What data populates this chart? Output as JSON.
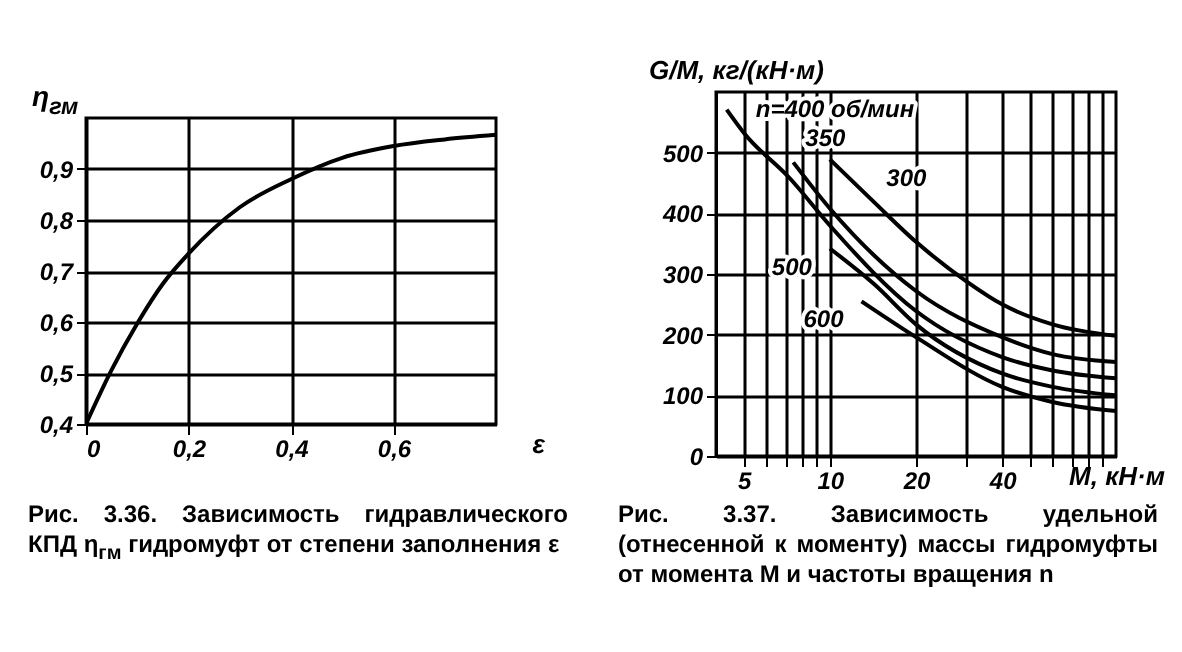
{
  "chart_data": [
    {
      "type": "line",
      "xlabel": "ε",
      "ylabel": "η$_{гм}$",
      "x": [
        0,
        0.05,
        0.1,
        0.15,
        0.2,
        0.3,
        0.4,
        0.5,
        0.6,
        0.7,
        0.8
      ],
      "values": [
        0.4,
        0.506,
        0.597,
        0.675,
        0.734,
        0.825,
        0.88,
        0.922,
        0.945,
        0.958,
        0.967
      ],
      "color": "#000000",
      "xlim": [
        0,
        0.8
      ],
      "ylim": [
        0.4,
        1.0
      ],
      "xticks": [
        0,
        {
          "value": 0.2,
          "label": "0,2"
        },
        {
          "value": 0.4,
          "label": "0,4"
        },
        {
          "value": 0.6,
          "label": "0,6"
        }
      ],
      "yticks": [
        {
          "value": 0.4,
          "label": "0,4"
        },
        {
          "value": 0.5,
          "label": "0,5"
        },
        {
          "value": 0.6,
          "label": "0,6"
        },
        {
          "value": 0.7,
          "label": "0,7"
        },
        {
          "value": 0.8,
          "label": "0,8"
        },
        {
          "value": 0.9,
          "label": "0,9"
        }
      ],
      "grid": true,
      "marker": "none",
      "line_style": "solid",
      "annotations": [
        "Рис. 3.36. Зависимость гидравлического КПД η$_{гм}$ гидромуфт от степени заполнения ε"
      ]
    },
    {
      "type": "line",
      "xlabel": "M, кН·м",
      "ylabel": "G/M, кг/(кН·м)",
      "log": "x",
      "series": [
        {
          "name": "n=400 об/мин",
          "color": "#000000",
          "x": [
            4.36,
            5,
            7.27,
            10,
            20,
            40,
            60,
            100
          ],
          "values": [
            571,
            533,
            457,
            380,
            239,
            163,
            141,
            128
          ]
        },
        {
          "name": "350",
          "color": "#000000",
          "x": [
            7.45,
            10,
            20,
            40,
            60,
            100
          ],
          "values": [
            484,
            408,
            272,
            196,
            168,
            155
          ]
        },
        {
          "name": "300",
          "color": "#000000",
          "x": [
            10,
            14.3,
            20,
            30,
            40,
            60,
            100
          ],
          "values": [
            489,
            418,
            353,
            288,
            250,
            217,
            198
          ]
        },
        {
          "name": "500",
          "color": "#000000",
          "x": [
            10,
            14.3,
            20,
            40,
            60,
            100
          ],
          "values": [
            342,
            283,
            217,
            136,
            114,
            100
          ]
        },
        {
          "name": "600",
          "color": "#000000",
          "x": [
            12.9,
            20,
            40,
            60,
            100
          ],
          "values": [
            255,
            196,
            114,
            89,
            74
          ]
        }
      ],
      "xlim": [
        4,
        100
      ],
      "ylim": [
        0,
        600
      ],
      "xticks": [
        5,
        {
          "value": 6,
          "label": null
        },
        {
          "value": 7,
          "label": null
        },
        {
          "value": 8,
          "label": null
        },
        {
          "value": 9,
          "label": null
        },
        10,
        20,
        {
          "value": 30,
          "label": null
        },
        40,
        {
          "value": 50,
          "label": null
        },
        {
          "value": 60,
          "label": null
        },
        {
          "value": 70,
          "label": null
        },
        {
          "value": 80,
          "label": null
        },
        {
          "value": 90,
          "label": null
        }
      ],
      "yticks": [
        0,
        100,
        200,
        300,
        400,
        500
      ],
      "grid": true,
      "marker": "none",
      "line_style": "solid",
      "annotations": [
        "Рис. 3.37. Зависимость удельной (отнесенной к моменту) массы гидромуфты от момента M и частоты вращения n"
      ]
    }
  ]
}
